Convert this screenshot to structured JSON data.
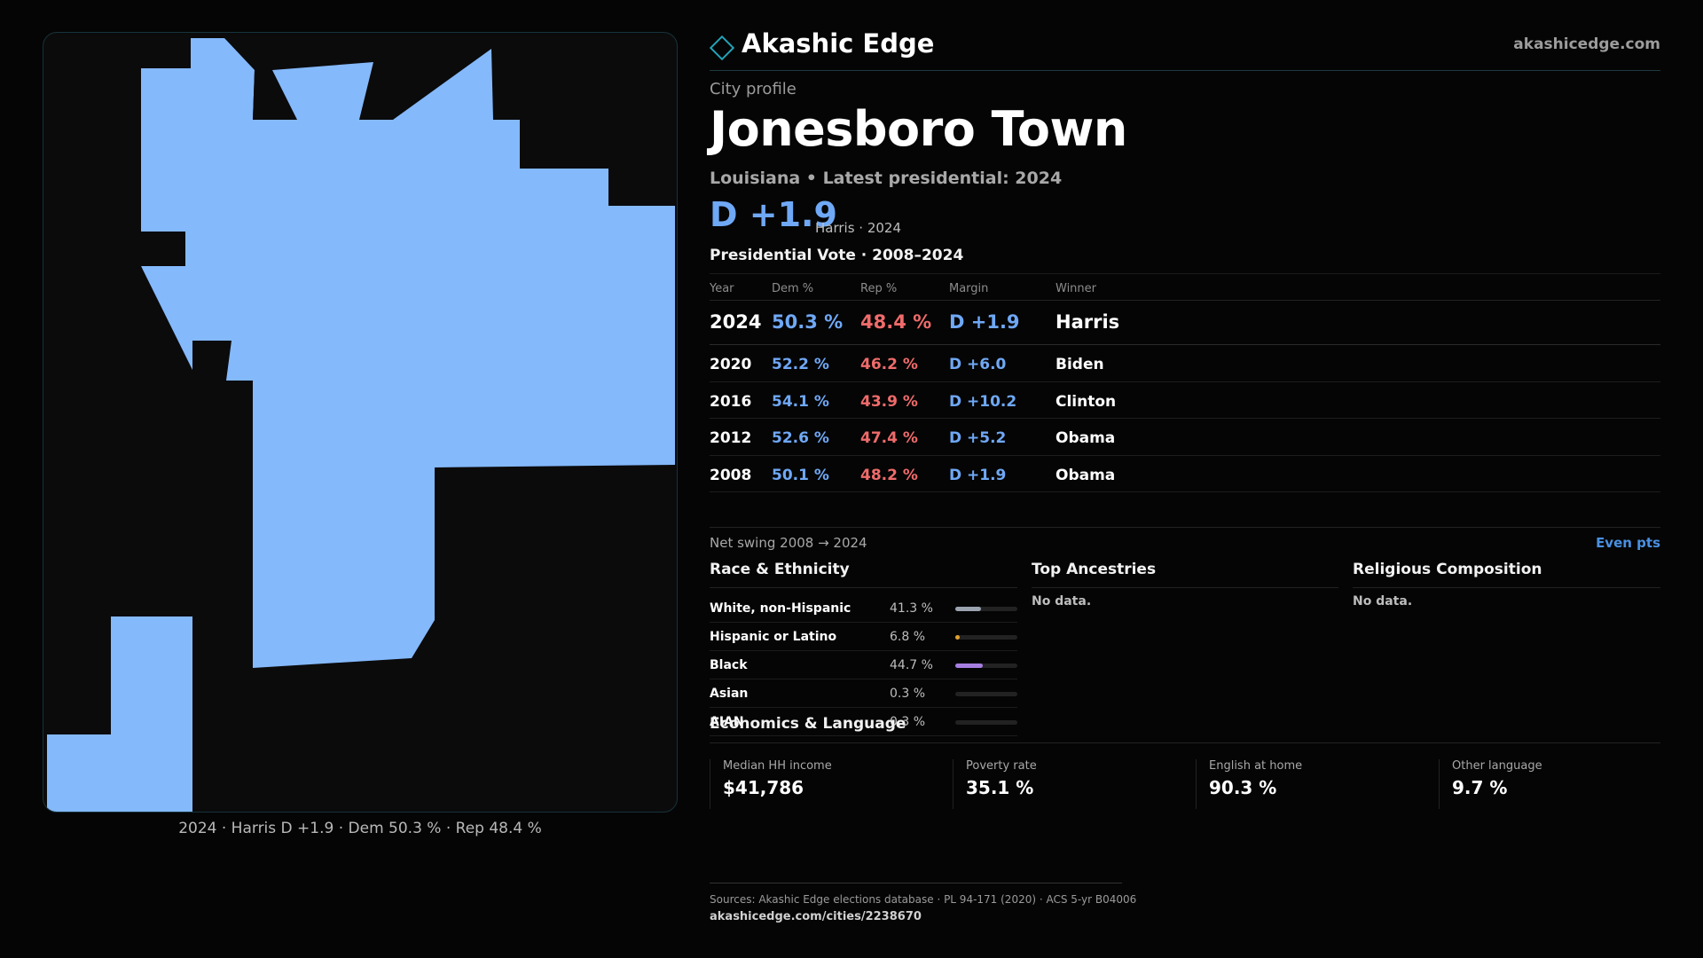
{
  "map": {
    "fill_color": "#84b9fc",
    "caption": "2024 · Harris D +1.9 · Dem 50.3 % · Rep 48.4 %"
  },
  "header": {
    "brand_icon": "diamond-outline-icon",
    "brand_name": "Akashic Edge",
    "site_url": "akashicedge.com"
  },
  "profile": {
    "kicker": "City profile",
    "title": "Jonesboro Town",
    "subtitle": "Louisiana • Latest presidential: 2024",
    "margin": "D +1.9",
    "margin_note": "Harris · 2024"
  },
  "vote_table": {
    "title": "Presidential Vote · 2008–2024",
    "columns": [
      "Year",
      "Dem %",
      "Rep %",
      "Margin",
      "Winner"
    ],
    "rows": [
      {
        "year": "2024",
        "dem": "50.3 %",
        "rep": "48.4 %",
        "margin": "D +1.9",
        "winner": "Harris"
      },
      {
        "year": "2020",
        "dem": "52.2 %",
        "rep": "46.2 %",
        "margin": "D +6.0",
        "winner": "Biden"
      },
      {
        "year": "2016",
        "dem": "54.1 %",
        "rep": "43.9 %",
        "margin": "D +10.2",
        "winner": "Clinton"
      },
      {
        "year": "2012",
        "dem": "52.6 %",
        "rep": "47.4 %",
        "margin": "D +5.2",
        "winner": "Obama"
      },
      {
        "year": "2008",
        "dem": "50.1 %",
        "rep": "48.2 %",
        "margin": "D +1.9",
        "winner": "Obama"
      }
    ],
    "swing_label": "Net swing 2008 → 2024",
    "swing_value": "Even pts"
  },
  "race": {
    "title": "Race & Ethnicity",
    "rows": [
      {
        "label": "White, non-Hispanic",
        "pct": "41.3 %",
        "value": 41.3,
        "color": "#9aa3ae"
      },
      {
        "label": "Hispanic or Latino",
        "pct": "6.8 %",
        "value": 6.8,
        "color": "#e0a030"
      },
      {
        "label": "Black",
        "pct": "44.7 %",
        "value": 44.7,
        "color": "#a67ee0"
      },
      {
        "label": "Asian",
        "pct": "0.3 %",
        "value": 0.3,
        "color": "#5fb8c8"
      },
      {
        "label": "AIAN",
        "pct": "0.3 %",
        "value": 0.3,
        "color": "#5fb8c8"
      }
    ]
  },
  "ancestries": {
    "title": "Top Ancestries",
    "empty": "No data."
  },
  "religion": {
    "title": "Religious Composition",
    "empty": "No data."
  },
  "economics": {
    "title": "Economics & Language",
    "cards": [
      {
        "label": "Median HH income",
        "value": "$41,786"
      },
      {
        "label": "Poverty rate",
        "value": "35.1 %"
      },
      {
        "label": "English at home",
        "value": "90.3 %"
      },
      {
        "label": "Other language",
        "value": "9.7 %"
      }
    ]
  },
  "footer": {
    "sources": "Sources: Akashic Edge elections database · PL 94-171 (2020) · ACS 5-yr B04006",
    "url": "akashicedge.com/cities/2238670"
  }
}
